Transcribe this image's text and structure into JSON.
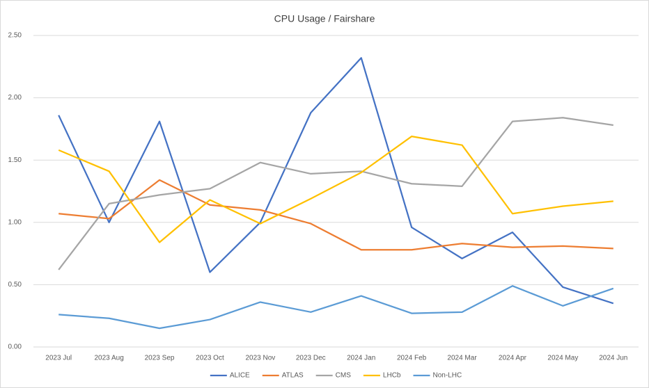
{
  "chart_data": {
    "type": "line",
    "title": "CPU Usage / Fairshare",
    "categories": [
      "2023 Jul",
      "2023 Aug",
      "2023 Sep",
      "2023 Oct",
      "2023 Nov",
      "2023 Dec",
      "2024 Jan",
      "2024 Feb",
      "2024 Mar",
      "2024 Apr",
      "2024 May",
      "2024 Jun"
    ],
    "series": [
      {
        "name": "ALICE",
        "color": "#4472c4",
        "values": [
          1.86,
          1.0,
          1.81,
          0.6,
          1.0,
          1.88,
          2.32,
          0.96,
          0.71,
          0.92,
          0.48,
          0.35
        ]
      },
      {
        "name": "ATLAS",
        "color": "#ed7d31",
        "values": [
          1.07,
          1.03,
          1.34,
          1.14,
          1.1,
          0.99,
          0.78,
          0.78,
          0.83,
          0.8,
          0.81,
          0.79
        ]
      },
      {
        "name": "CMS",
        "color": "#a5a5a5",
        "values": [
          0.62,
          1.15,
          1.22,
          1.27,
          1.48,
          1.39,
          1.41,
          1.31,
          1.29,
          1.81,
          1.84,
          1.78
        ]
      },
      {
        "name": "LHCb",
        "color": "#ffc000",
        "values": [
          1.58,
          1.41,
          0.84,
          1.18,
          0.99,
          1.19,
          1.4,
          1.69,
          1.62,
          1.07,
          1.13,
          1.17
        ]
      },
      {
        "name": "Non-LHC",
        "color": "#5b9bd5",
        "values": [
          0.26,
          0.23,
          0.15,
          0.22,
          0.36,
          0.28,
          0.41,
          0.27,
          0.28,
          0.49,
          0.33,
          0.47
        ]
      }
    ],
    "ylim": [
      0,
      2.5
    ],
    "yticks": [
      {
        "value": 0,
        "label": "0.00"
      },
      {
        "value": 0.5,
        "label": "0.50"
      },
      {
        "value": 1,
        "label": "1.00"
      },
      {
        "value": 1.5,
        "label": "1.50"
      },
      {
        "value": 2,
        "label": "2.00"
      },
      {
        "value": 2.5,
        "label": "2.50"
      }
    ],
    "grid": true,
    "legend": "bottom"
  }
}
